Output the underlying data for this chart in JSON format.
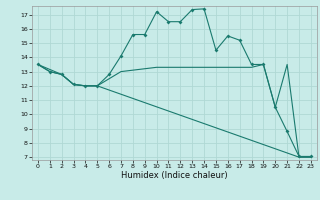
{
  "xlabel": "Humidex (Indice chaleur)",
  "bg_color": "#c8ebe8",
  "line_color": "#1a7a6e",
  "grid_color": "#b0d8d4",
  "xlim": [
    -0.5,
    23.5
  ],
  "ylim": [
    6.8,
    17.6
  ],
  "yticks": [
    7,
    8,
    9,
    10,
    11,
    12,
    13,
    14,
    15,
    16,
    17
  ],
  "xticks": [
    0,
    1,
    2,
    3,
    4,
    5,
    6,
    7,
    8,
    9,
    10,
    11,
    12,
    13,
    14,
    15,
    16,
    17,
    18,
    19,
    20,
    21,
    22,
    23
  ],
  "line1_x": [
    0,
    1,
    2,
    3,
    4,
    5,
    6,
    7,
    8,
    9,
    10,
    11,
    12,
    13,
    14,
    15,
    16,
    17,
    18,
    19,
    20,
    21,
    22,
    23
  ],
  "line1_y": [
    13.5,
    13.0,
    12.8,
    12.1,
    12.0,
    12.0,
    12.5,
    13.0,
    13.1,
    13.2,
    13.3,
    13.3,
    13.3,
    13.3,
    13.3,
    13.3,
    13.3,
    13.3,
    13.3,
    13.5,
    10.5,
    13.5,
    7.0,
    7.0
  ],
  "line2_x": [
    0,
    1,
    2,
    3,
    4,
    5,
    6,
    7,
    8,
    9,
    10,
    11,
    12,
    13,
    14,
    15,
    16,
    17,
    18,
    19,
    20,
    21,
    22,
    23
  ],
  "line2_y": [
    13.5,
    13.0,
    12.8,
    12.1,
    12.0,
    12.0,
    12.8,
    14.1,
    15.6,
    15.6,
    17.2,
    16.5,
    16.5,
    17.35,
    17.4,
    14.5,
    15.5,
    15.2,
    13.5,
    13.5,
    10.5,
    8.8,
    7.05,
    7.05
  ],
  "line3_x": [
    0,
    2,
    3,
    4,
    5,
    22,
    23
  ],
  "line3_y": [
    13.5,
    12.8,
    12.1,
    12.0,
    12.0,
    7.0,
    7.0
  ]
}
